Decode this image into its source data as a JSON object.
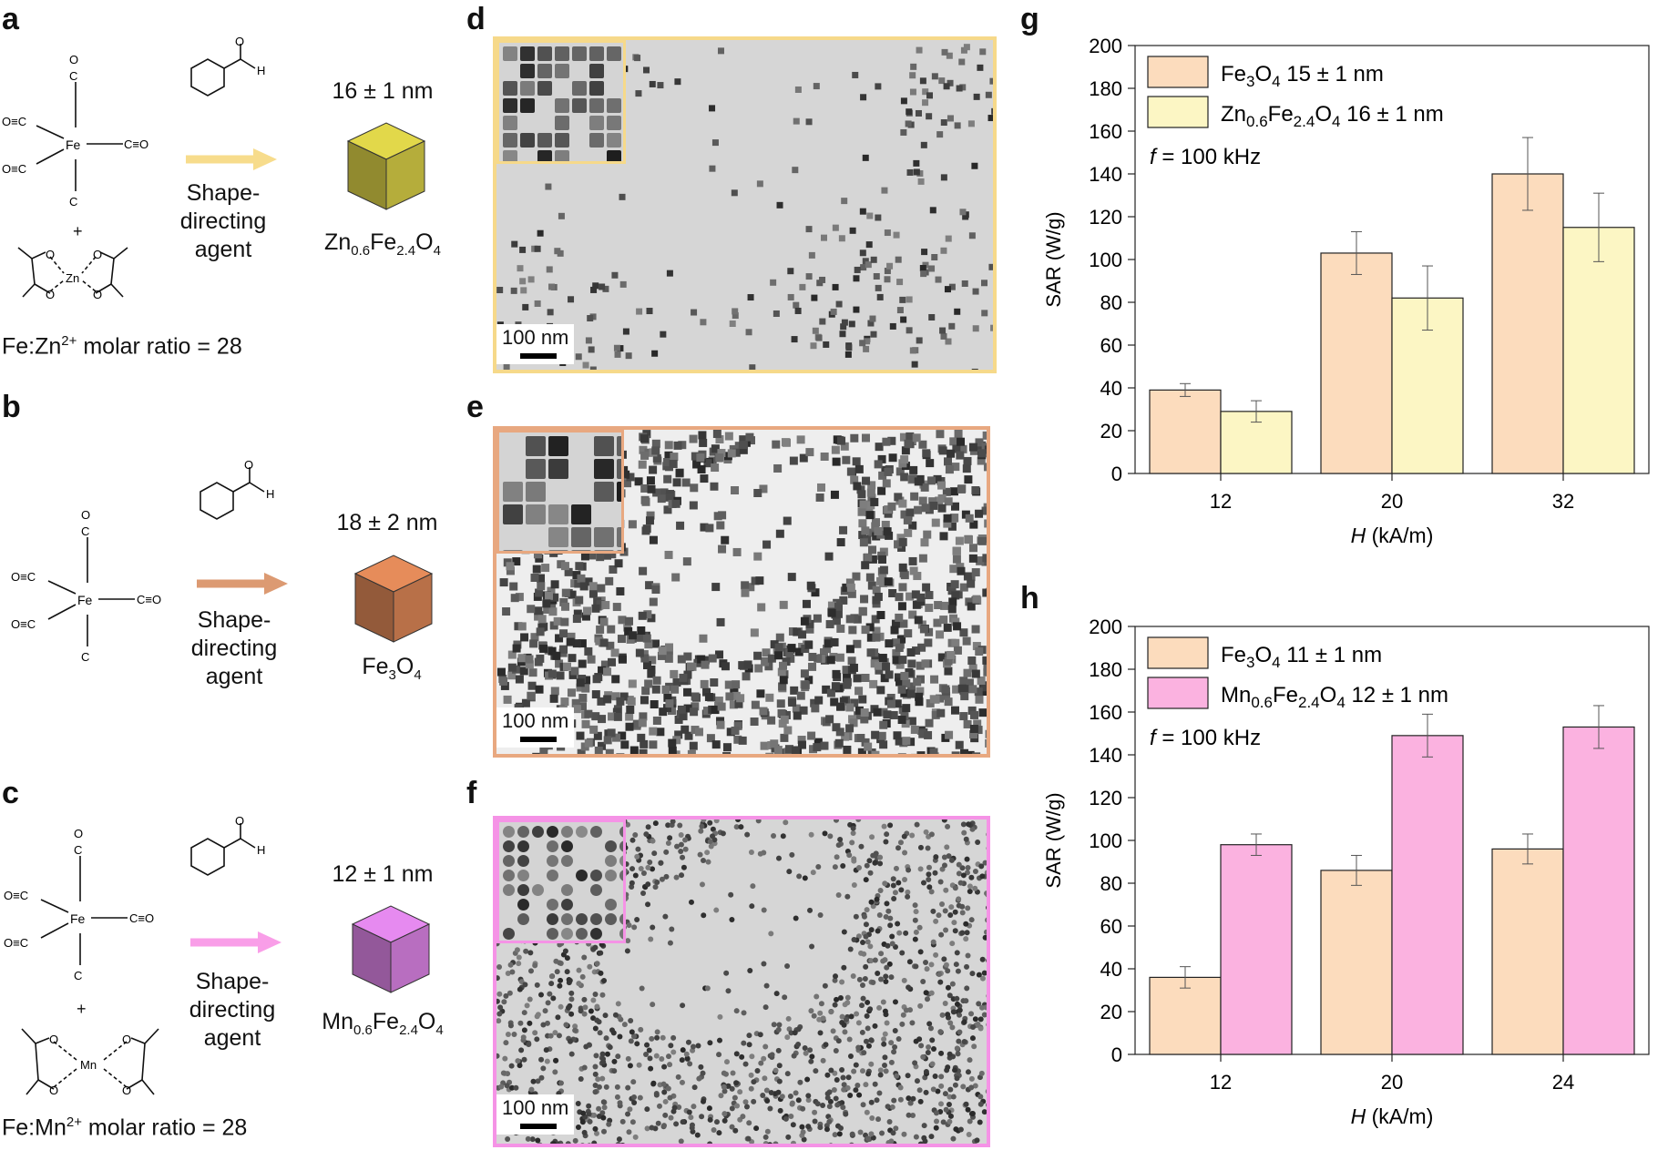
{
  "panels": {
    "a": "a",
    "b": "b",
    "c": "c",
    "d": "d",
    "e": "e",
    "f": "f",
    "g": "g",
    "h": "h"
  },
  "synthesis": {
    "a": {
      "size": "16 ± 1 nm",
      "agent_line1": "Shape-",
      "agent_line2": "directing",
      "agent_line3": "agent",
      "product_main": "Zn",
      "product_sub1": "0.6",
      "product_mid": "Fe",
      "product_sub2": "2.4",
      "product_end": "O",
      "product_sub3": "4",
      "ratio_prefix": "Fe:Zn",
      "ratio_sup": "2+",
      "ratio_suffix": " molar ratio = 28",
      "arrow_color": "#f7dc8c",
      "cube_color": "#b5ad3b"
    },
    "b": {
      "size": "18 ± 2 nm",
      "agent_line1": "Shape-",
      "agent_line2": "directing",
      "agent_line3": "agent",
      "product_main": "Fe",
      "product_sub1": "3",
      "product_end": "O",
      "product_sub2": "4",
      "arrow_color": "#dc9a72",
      "cube_color": "#b87048"
    },
    "c": {
      "size": "12 ± 1 nm",
      "agent_line1": "Shape-",
      "agent_line2": "directing",
      "agent_line3": "agent",
      "product_main": "Mn",
      "product_sub1": "0.6",
      "product_mid": "Fe",
      "product_sub2": "2.4",
      "product_end": "O",
      "product_sub3": "4",
      "ratio_prefix": "Fe:Mn",
      "ratio_sup": "2+",
      "ratio_suffix": " molar ratio = 28",
      "arrow_color": "#f99ee8",
      "cube_color": "#b86ec0"
    }
  },
  "chem": {
    "fe": "Fe",
    "zn": "Zn",
    "mn": "Mn",
    "co_left": "O≡C",
    "co_right": "C≡O",
    "co_top": "C",
    "o": "O",
    "h": "H",
    "plus": "+"
  },
  "tem": {
    "d": {
      "scale": "100 nm",
      "border": "#f6d98a"
    },
    "e": {
      "scale": "100 nm",
      "border": "#e8a880"
    },
    "f": {
      "scale": "100 nm",
      "border": "#f593e6"
    }
  },
  "chart_data": [
    {
      "type": "bar",
      "panel": "g",
      "categories": [
        "12",
        "20",
        "32"
      ],
      "series": [
        {
          "name": "Fe3O4 15 ± 1 nm",
          "values": [
            39,
            103,
            140
          ],
          "errors": [
            3,
            10,
            17
          ],
          "color": "#fcdcbd"
        },
        {
          "name": "Zn0.6Fe2.4O4 16 ± 1 nm",
          "values": [
            29,
            82,
            115
          ],
          "errors": [
            5,
            15,
            16
          ],
          "color": "#fcf6c4"
        }
      ],
      "xlabel_italic": "H",
      "xlabel_rest": " (kA/m)",
      "ylabel": "SAR (W/g)",
      "ylim": [
        0,
        200
      ],
      "yticks": [
        "0",
        "20",
        "40",
        "60",
        "80",
        "100",
        "120",
        "140",
        "160",
        "180",
        "200"
      ],
      "annotation_italic": "f",
      "annotation_rest": " = 100 kHz",
      "legend": [
        {
          "main": "Fe",
          "sub1": "3",
          "mid": "O",
          "sub2": "4",
          "tail": " 15 ± 1 nm"
        },
        {
          "main": "Zn",
          "sub1": "0.6",
          "mid": "Fe",
          "sub2": "2.4",
          "mid2": "O",
          "sub3": "4",
          "tail": " 16 ± 1 nm"
        }
      ]
    },
    {
      "type": "bar",
      "panel": "h",
      "categories": [
        "12",
        "20",
        "24"
      ],
      "series": [
        {
          "name": "Fe3O4 11 ± 1 nm",
          "values": [
            36,
            86,
            96
          ],
          "errors": [
            5,
            7,
            7
          ],
          "color": "#fcdcbd"
        },
        {
          "name": "Mn0.6Fe2.4O4 12 ± 1 nm",
          "values": [
            98,
            149,
            153
          ],
          "errors": [
            5,
            10,
            10
          ],
          "color": "#fbb2e0"
        }
      ],
      "xlabel_italic": "H",
      "xlabel_rest": " (kA/m)",
      "ylabel": "SAR (W/g)",
      "ylim": [
        0,
        200
      ],
      "yticks": [
        "0",
        "20",
        "40",
        "60",
        "80",
        "100",
        "120",
        "140",
        "160",
        "180",
        "200"
      ],
      "annotation_italic": "f",
      "annotation_rest": " = 100 kHz",
      "legend": [
        {
          "main": "Fe",
          "sub1": "3",
          "mid": "O",
          "sub2": "4",
          "tail": " 11 ± 1 nm"
        },
        {
          "main": "Mn",
          "sub1": "0.6",
          "mid": "Fe",
          "sub2": "2.4",
          "mid2": "O",
          "sub3": "4",
          "tail": " 12 ± 1 nm"
        }
      ]
    }
  ]
}
